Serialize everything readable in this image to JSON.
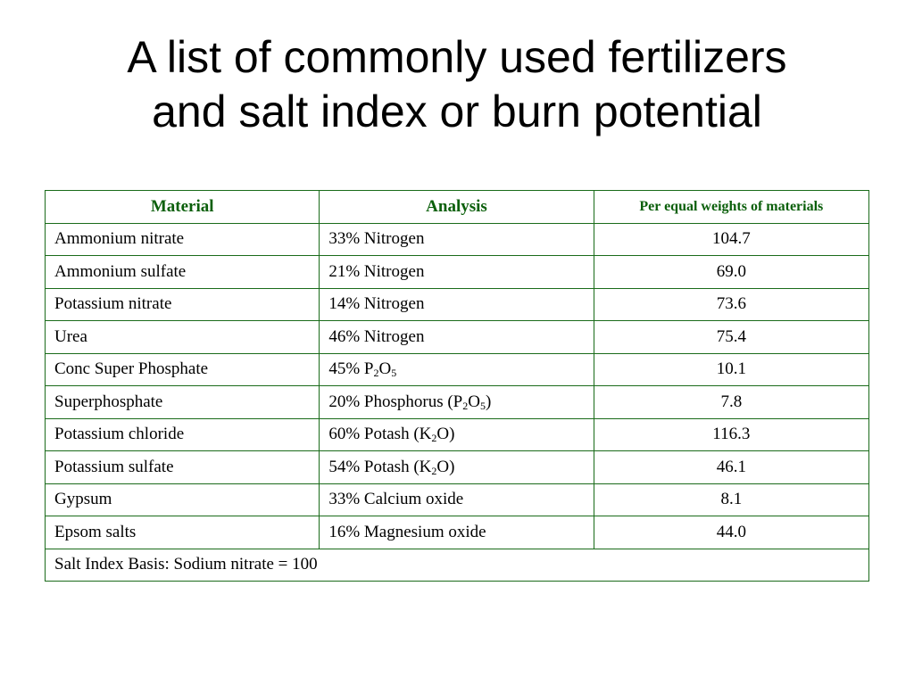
{
  "title": {
    "line1": "A list of commonly used fertilizers",
    "line2": "and salt index or burn potential"
  },
  "table": {
    "headers": [
      "Material",
      "Analysis",
      "Per equal weights of materials"
    ],
    "rows": [
      {
        "material": "Ammonium nitrate",
        "analysis": {
          "pre": "33% Nitrogen"
        },
        "value": "104.7"
      },
      {
        "material": "Ammonium sulfate",
        "analysis": {
          "pre": "21% Nitrogen"
        },
        "value": "69.0"
      },
      {
        "material": "Potassium nitrate",
        "analysis": {
          "pre": "14% Nitrogen"
        },
        "value": "73.6"
      },
      {
        "material": "Urea",
        "analysis": {
          "pre": "46% Nitrogen"
        },
        "value": "75.4"
      },
      {
        "material": "Conc Super Phosphate",
        "analysis": {
          "pre": "45% P",
          "sub1": "2",
          "mid": "O",
          "sub2": "5",
          "post": ""
        },
        "value": "10.1"
      },
      {
        "material": "Superphosphate",
        "analysis": {
          "pre": "20% Phosphorus (P",
          "sub1": "2",
          "mid": "O",
          "sub2": "5",
          "post": ")"
        },
        "value": "7.8"
      },
      {
        "material": "Potassium chloride",
        "analysis": {
          "pre": "60% Potash (K",
          "sub1": "2",
          "mid": "O)"
        },
        "value": "116.3"
      },
      {
        "material": "Potassium sulfate",
        "analysis": {
          "pre": "54% Potash (K",
          "sub1": "2",
          "mid": "O)"
        },
        "value": "46.1"
      },
      {
        "material": "Gypsum",
        "analysis": {
          "pre": "33% Calcium oxide"
        },
        "value": "8.1"
      },
      {
        "material": "Epsom salts",
        "analysis": {
          "pre": "16% Magnesium oxide"
        },
        "value": "44.0"
      }
    ],
    "footer": "Salt Index Basis: Sodium nitrate = 100"
  },
  "colors": {
    "header_text": "#0b5f0b",
    "grid_lines": "#1a6b1a",
    "outer_border": "#000000"
  }
}
